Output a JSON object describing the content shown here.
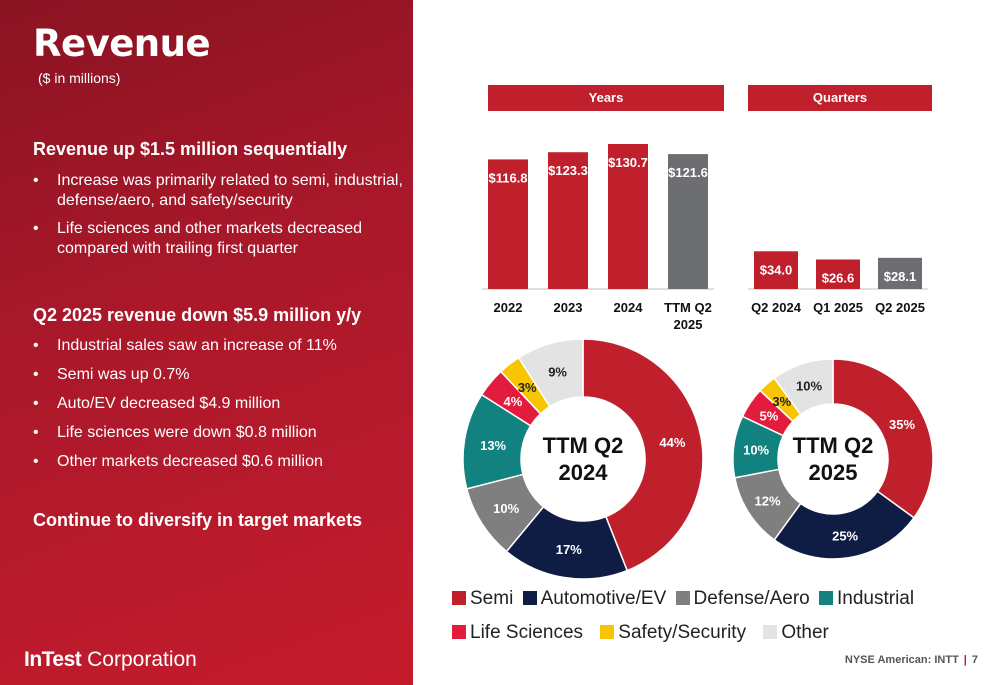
{
  "slide": {
    "title": "Revenue",
    "subtitle": "($ in millions)",
    "section1": {
      "heading": "Revenue up $1.5 million sequentially",
      "bullets": [
        "Increase was primarily related to semi, industrial, defense/aero, and safety/security",
        "Life sciences and other markets decreased compared with trailing first quarter"
      ]
    },
    "section2": {
      "heading": "Q2 2025 revenue down $5.9 million y/y",
      "bullets": [
        "Industrial sales saw an increase of 11%",
        "Semi was up 0.7%",
        "Auto/EV decreased $4.9 million",
        "Life sciences were down $0.8 million",
        "Other markets decreased $0.6 million"
      ]
    },
    "section3": {
      "heading": "Continue to diversify in target markets"
    },
    "logo": {
      "bold": "InTest",
      "rest": " Corporation"
    },
    "footer": {
      "ticker": "NYSE American: INTT",
      "separator": "|",
      "page": "7"
    }
  },
  "colors": {
    "red": "#c0202c",
    "gray": "#6d6e71",
    "semi": "#c0202c",
    "automotive": "#0f1d45",
    "defense": "#7f7f7f",
    "industrial": "#128280",
    "life_sciences": "#e31c3d",
    "safety": "#f7c600",
    "other": "#e3e3e3"
  },
  "chart_data": [
    {
      "type": "bar",
      "header": "Years",
      "categories": [
        "2022",
        "2023",
        "2024",
        "TTM Q2 2025"
      ],
      "values": [
        116.8,
        123.3,
        130.7,
        121.6
      ],
      "labels": [
        "$116.8",
        "$123.3",
        "$130.7",
        "$121.6"
      ],
      "highlight": [
        false,
        false,
        false,
        true
      ]
    },
    {
      "type": "bar",
      "header": "Quarters",
      "categories": [
        "Q2 2024",
        "Q1 2025",
        "Q2 2025"
      ],
      "values": [
        34.0,
        26.6,
        28.1
      ],
      "labels": [
        "$34.0",
        "$26.6",
        "$28.1"
      ],
      "highlight": [
        false,
        false,
        true
      ]
    },
    {
      "type": "pie",
      "center_label": [
        "TTM Q2",
        "2024"
      ],
      "slices": [
        {
          "name": "Semi",
          "value": 44,
          "label": "44%"
        },
        {
          "name": "Automotive/EV",
          "value": 17,
          "label": "17%"
        },
        {
          "name": "Defense/Aero",
          "value": 10,
          "label": "10%"
        },
        {
          "name": "Industrial",
          "value": 13,
          "label": "13%"
        },
        {
          "name": "Life Sciences",
          "value": 4,
          "label": "4%"
        },
        {
          "name": "Safety/Security",
          "value": 3,
          "label": "3%"
        },
        {
          "name": "Other",
          "value": 9,
          "label": "9%"
        }
      ]
    },
    {
      "type": "pie",
      "center_label": [
        "TTM Q2",
        "2025"
      ],
      "slices": [
        {
          "name": "Semi",
          "value": 35,
          "label": "35%"
        },
        {
          "name": "Automotive/EV",
          "value": 25,
          "label": "25%"
        },
        {
          "name": "Defense/Aero",
          "value": 12,
          "label": "12%"
        },
        {
          "name": "Industrial",
          "value": 10,
          "label": "10%"
        },
        {
          "name": "Life Sciences",
          "value": 5,
          "label": "5%"
        },
        {
          "name": "Safety/Security",
          "value": 3,
          "label": "3%"
        },
        {
          "name": "Other",
          "value": 10,
          "label": "10%"
        }
      ]
    }
  ],
  "legend": {
    "row1": [
      {
        "label": "Semi",
        "color_key": "semi"
      },
      {
        "label": "Automotive/EV",
        "color_key": "automotive"
      },
      {
        "label": "Defense/Aero",
        "color_key": "defense"
      },
      {
        "label": "Industrial",
        "color_key": "industrial"
      }
    ],
    "row2": [
      {
        "label": "Life Sciences",
        "color_key": "life_sciences"
      },
      {
        "label": "Safety/Security",
        "color_key": "safety"
      },
      {
        "label": "Other",
        "color_key": "other"
      }
    ]
  }
}
